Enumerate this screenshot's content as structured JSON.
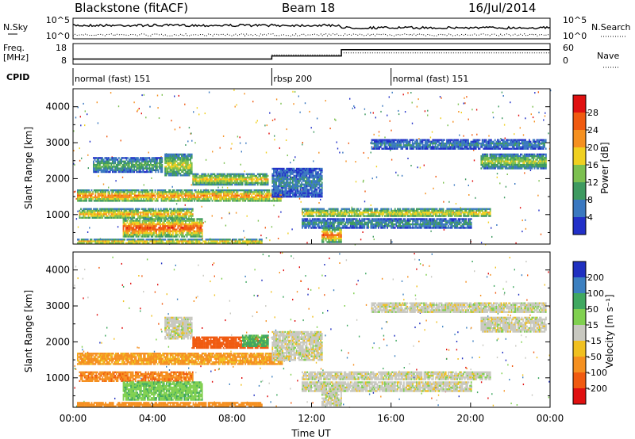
{
  "header": {
    "station": "Blackstone (fitACF)",
    "beam": "Beam 18",
    "date": "16/Jul/2014"
  },
  "nsky_panel": {
    "left_label": "N.Sky",
    "right_label": "N.Search",
    "ticks_left": [
      "10^5",
      "10^0"
    ],
    "ticks_right": [
      "10^5",
      "10^0"
    ]
  },
  "freq_panel": {
    "left_label_1": "Freq.",
    "left_label_2": "[MHz]",
    "right_label": "Nave",
    "ticks_left": [
      "18",
      "8"
    ],
    "ticks_right": [
      "60",
      "0"
    ],
    "freq_step_hours": 10.0,
    "freq_step_mhz": [
      10.5,
      12.0
    ],
    "nave_step_hours": 13.5
  },
  "cpid": {
    "label": "CPID",
    "segments": [
      {
        "name": "normal (fast) 151",
        "start_h": 0,
        "end_h": 10
      },
      {
        "name": "rbsp 200",
        "start_h": 10,
        "end_h": 16
      },
      {
        "name": "normal (fast) 151",
        "start_h": 16,
        "end_h": 24
      }
    ]
  },
  "chart_data": [
    {
      "type": "heatmap",
      "quantity": "Power",
      "ylabel": "Slant Range [km]",
      "ylim": [
        180,
        4500
      ],
      "yticks": [
        "1000",
        "2000",
        "3000",
        "4000"
      ],
      "colorbar_title": "Power [dB]",
      "colorbar_ticks": [
        "4",
        "8",
        "12",
        "16",
        "20",
        "24",
        "28"
      ],
      "colorbar_colors": [
        "#2230c8",
        "#3a78c0",
        "#3e9a60",
        "#7cc050",
        "#f0d020",
        "#f59020",
        "#f05a10",
        "#e01010"
      ],
      "echo_bands": [
        {
          "h": [
            0.2,
            10.5
          ],
          "r": [
            1380,
            1700
          ],
          "peak": 24
        },
        {
          "h": [
            0.3,
            6.0
          ],
          "r": [
            900,
            1180
          ],
          "peak": 22
        },
        {
          "h": [
            6.0,
            9.8
          ],
          "r": [
            1850,
            2150
          ],
          "peak": 20
        },
        {
          "h": [
            4.6,
            6.0
          ],
          "r": [
            2100,
            2700
          ],
          "peak": 18
        },
        {
          "h": [
            1.0,
            4.5
          ],
          "r": [
            2200,
            2600
          ],
          "peak": 12
        },
        {
          "h": [
            2.5,
            6.5
          ],
          "r": [
            400,
            900
          ],
          "peak": 28
        },
        {
          "h": [
            0.2,
            9.5
          ],
          "r": [
            200,
            330
          ],
          "peak": 22
        },
        {
          "h": [
            10.0,
            12.5
          ],
          "r": [
            1500,
            2300
          ],
          "peak": 8
        },
        {
          "h": [
            11.5,
            21.0
          ],
          "r": [
            950,
            1180
          ],
          "peak": 20
        },
        {
          "h": [
            11.5,
            20.0
          ],
          "r": [
            650,
            900
          ],
          "peak": 10
        },
        {
          "h": [
            12.5,
            13.5
          ],
          "r": [
            250,
            650
          ],
          "peak": 26
        },
        {
          "h": [
            15.0,
            23.8
          ],
          "r": [
            2850,
            3100
          ],
          "peak": 8
        },
        {
          "h": [
            20.5,
            23.8
          ],
          "r": [
            2300,
            2700
          ],
          "peak": 16
        }
      ]
    },
    {
      "type": "heatmap",
      "quantity": "Velocity",
      "ylabel": "Slant Range [km]",
      "xlabel": "Time UT",
      "xticks": [
        "00:00",
        "04:00",
        "08:00",
        "12:00",
        "16:00",
        "20:00",
        "00:00"
      ],
      "ylim": [
        180,
        4500
      ],
      "yticks": [
        "1000",
        "2000",
        "3000",
        "4000"
      ],
      "colorbar_title": "Velocity [m s⁻¹]",
      "colorbar_ticks": [
        "200",
        "100",
        "50",
        "15",
        "-15",
        "-50",
        "-100",
        "-200"
      ],
      "colorbar_colors": [
        "#2030c0",
        "#3c80c0",
        "#40a860",
        "#80d050",
        "#c8c8c0",
        "#f0c020",
        "#f59020",
        "#f05a10",
        "#e01010"
      ],
      "echo_bands": [
        {
          "h": [
            0.2,
            10.5
          ],
          "r": [
            1380,
            1700
          ],
          "vel": -60
        },
        {
          "h": [
            0.3,
            6.0
          ],
          "r": [
            900,
            1180
          ],
          "vel": -90
        },
        {
          "h": [
            6.0,
            9.8
          ],
          "r": [
            1850,
            2150
          ],
          "vel": -150
        },
        {
          "h": [
            8.5,
            9.8
          ],
          "r": [
            1900,
            2200
          ],
          "vel": 60
        },
        {
          "h": [
            4.6,
            6.0
          ],
          "r": [
            2100,
            2700
          ],
          "vel": 0
        },
        {
          "h": [
            2.5,
            6.5
          ],
          "r": [
            400,
            900
          ],
          "vel": 40
        },
        {
          "h": [
            0.2,
            9.5
          ],
          "r": [
            200,
            330
          ],
          "vel": -80
        },
        {
          "h": [
            10.0,
            12.5
          ],
          "r": [
            1500,
            2300
          ],
          "vel": 0
        },
        {
          "h": [
            11.5,
            21.0
          ],
          "r": [
            950,
            1180
          ],
          "vel": 0
        },
        {
          "h": [
            11.5,
            20.0
          ],
          "r": [
            650,
            900
          ],
          "vel": 0
        },
        {
          "h": [
            12.5,
            13.5
          ],
          "r": [
            250,
            650
          ],
          "vel": 0
        },
        {
          "h": [
            15.0,
            23.8
          ],
          "r": [
            2850,
            3100
          ],
          "vel": 0
        },
        {
          "h": [
            20.5,
            23.8
          ],
          "r": [
            2300,
            2700
          ],
          "vel": 0
        }
      ]
    }
  ]
}
